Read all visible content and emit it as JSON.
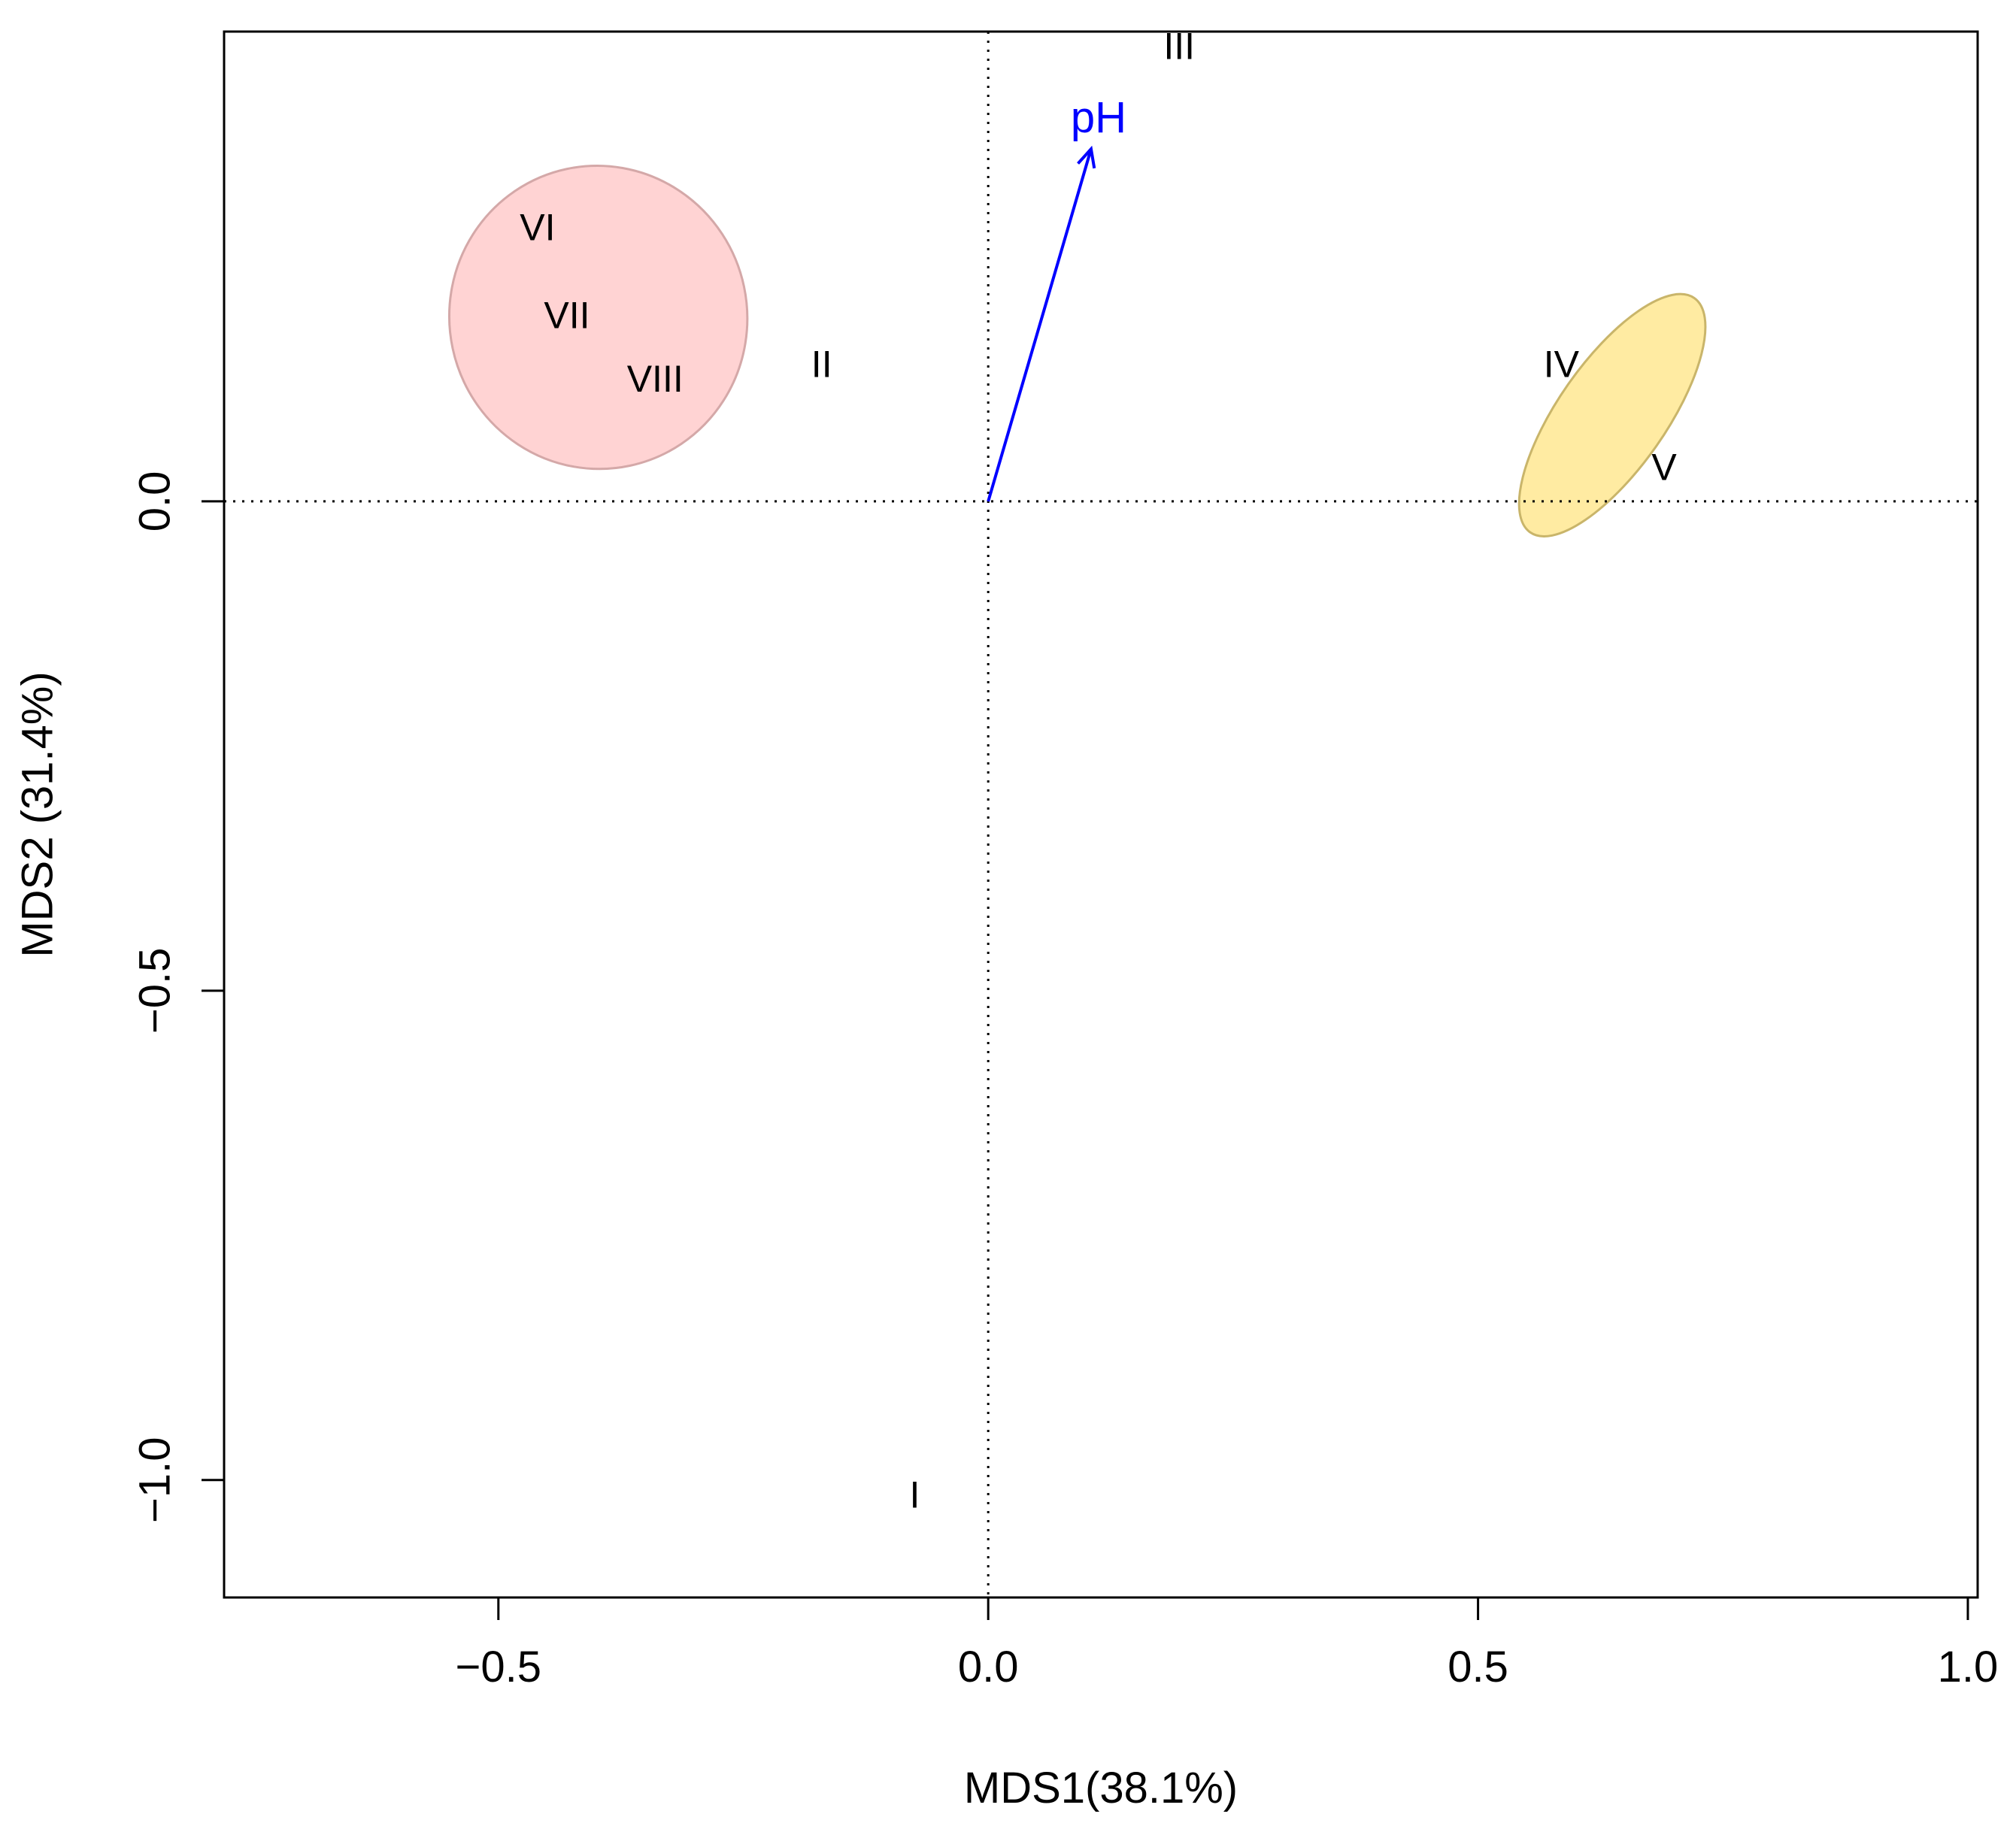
{
  "chart_data": {
    "type": "scatter",
    "title": "",
    "xlabel": "MDS1(38.1%)",
    "ylabel": "MDS2 (31.4%)",
    "xlim": [
      -0.78,
      1.01
    ],
    "ylim": [
      -1.12,
      0.48
    ],
    "xticks": [
      -0.5,
      0.0,
      0.5,
      1.0
    ],
    "xtick_labels": [
      "−0.5",
      "0.0",
      "0.5",
      "1.0"
    ],
    "yticks": [
      -1.0,
      -0.5,
      0.0
    ],
    "ytick_labels": [
      "−1.0",
      "−0.5",
      "0.0"
    ],
    "grid": false,
    "reference_lines": {
      "x": 0,
      "y": 0,
      "style": "dotted"
    },
    "points": [
      {
        "label": "I",
        "x": -0.075,
        "y": -1.015
      },
      {
        "label": "II",
        "x": -0.17,
        "y": 0.14
      },
      {
        "label": "III",
        "x": 0.195,
        "y": 0.465
      },
      {
        "label": "IV",
        "x": 0.585,
        "y": 0.14
      },
      {
        "label": "V",
        "x": 0.69,
        "y": 0.035
      },
      {
        "label": "VI",
        "x": -0.46,
        "y": 0.28
      },
      {
        "label": "VII",
        "x": -0.43,
        "y": 0.19
      },
      {
        "label": "VIII",
        "x": -0.34,
        "y": 0.125
      }
    ],
    "ellipses": [
      {
        "group": [
          "VI",
          "VII",
          "VIII"
        ],
        "color": "#FFC0C0",
        "stroke": "#D4A8A8",
        "opacity": 0.7,
        "cx": -0.398,
        "cy": 0.188,
        "rx": 0.152,
        "ry": 0.155,
        "angle_deg": -12
      },
      {
        "group": [
          "IV",
          "V"
        ],
        "color": "#FFE27A",
        "stroke": "#C9B56A",
        "opacity": 0.7,
        "cx": 0.637,
        "cy": 0.088,
        "rx": 0.146,
        "ry": 0.055,
        "angle_deg": -55
      }
    ],
    "vectors": [
      {
        "label": "pH",
        "x": 0.105,
        "y": 0.36,
        "color": "#0000FF"
      }
    ]
  }
}
